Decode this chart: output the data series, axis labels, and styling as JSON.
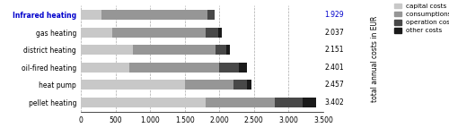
{
  "categories": [
    "Infrared heating",
    "gas heating",
    "district heating",
    "oil-fired heating",
    "heat pump",
    "pellet heating"
  ],
  "totals": [
    1929,
    2037,
    2151,
    2401,
    2457,
    3402
  ],
  "segments": {
    "capital costs": [
      300,
      450,
      750,
      700,
      1500,
      1800
    ],
    "consumptions costs": [
      1529,
      1350,
      1200,
      1300,
      700,
      1000
    ],
    "operation costs": [
      100,
      180,
      150,
      280,
      200,
      400
    ],
    "other costs": [
      0,
      57,
      51,
      121,
      57,
      202
    ]
  },
  "colors": {
    "capital costs": "#c8c8c8",
    "consumptions costs": "#969696",
    "operation costs": "#484848",
    "other costs": "#1a1a1a"
  },
  "highlight_label": "Infrared heating",
  "highlight_color": "#0000cc",
  "normal_color": "#000000",
  "ylabel": "total annual costs in EUR",
  "xlim": [
    0,
    3500
  ],
  "xticks": [
    0,
    500,
    1000,
    1500,
    2000,
    2500,
    3000,
    3500
  ],
  "xtick_labels": [
    "0",
    "500",
    "1.000",
    "1.500",
    "2.000",
    "2.500",
    "3.000",
    "3.500"
  ],
  "background_color": "#ffffff",
  "grid_color": "#aaaaaa"
}
